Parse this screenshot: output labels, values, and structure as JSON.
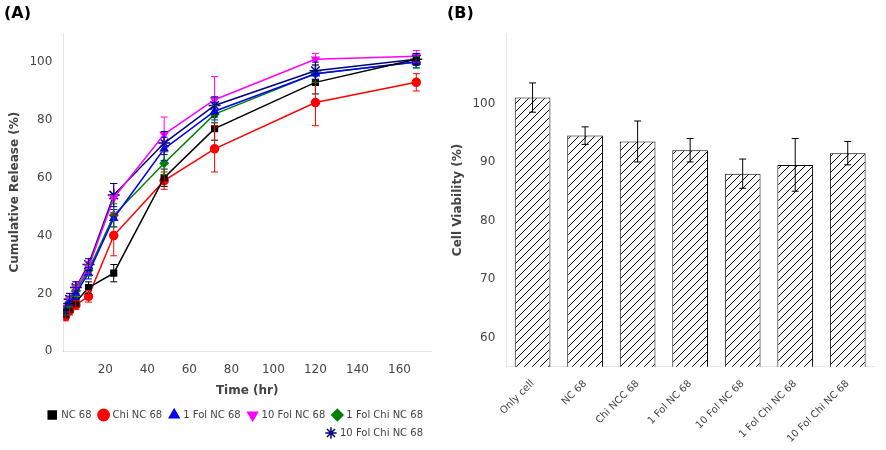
{
  "chart_data": [
    {
      "type": "line",
      "title": "(A)",
      "xlabel": "Time (hr)",
      "ylabel": "Cumulative Release (%)",
      "x": [
        1,
        3,
        6,
        12,
        24,
        48,
        72,
        120,
        168
      ],
      "xlim": [
        0,
        175
      ],
      "ylim": [
        0,
        110
      ],
      "xticks": [
        20,
        40,
        60,
        80,
        100,
        120,
        140,
        160
      ],
      "yticks": [
        0,
        20,
        40,
        60,
        80,
        100
      ],
      "grid": false,
      "legend": "lower right",
      "series": [
        {
          "name": "NC 68",
          "color": "#000000",
          "marker": "square",
          "values": [
            13,
            15,
            17,
            22,
            27,
            60,
            77,
            93,
            101
          ],
          "errors": [
            1.5,
            1.5,
            1.5,
            2,
            3,
            3,
            4,
            4,
            2
          ]
        },
        {
          "name": "Chi NC 68",
          "color": "#ff0000",
          "marker": "circle",
          "values": [
            12,
            14,
            16,
            19,
            40,
            59,
            70,
            86,
            93
          ],
          "errors": [
            1.5,
            1.5,
            1.5,
            2,
            7,
            3,
            8,
            8,
            3
          ]
        },
        {
          "name": "1 Fol NC 68",
          "color": "#0000ff",
          "marker": "triangle-up",
          "values": [
            14,
            17,
            20,
            27,
            46,
            70,
            83,
            96,
            100
          ],
          "errors": [
            1.5,
            2,
            2,
            2,
            3,
            4,
            3,
            3,
            2
          ]
        },
        {
          "name": "10 Fol NC 68",
          "color": "#ff00ff",
          "marker": "triangle-down",
          "values": [
            15,
            18,
            22,
            29,
            53,
            75,
            87,
            101,
            102
          ],
          "errors": [
            1.5,
            2,
            2,
            2,
            5,
            6,
            8,
            2,
            2
          ]
        },
        {
          "name": "1 Fol Chi NC 68",
          "color": "#008000",
          "marker": "diamond",
          "values": [
            14,
            17,
            21,
            28,
            47,
            65,
            82,
            96,
            100
          ],
          "errors": [
            1.5,
            2,
            2,
            2,
            4,
            4,
            3,
            3,
            2
          ]
        },
        {
          "name": "10 Fol Chi NC 68",
          "color": "#000080",
          "marker": "star",
          "values": [
            15,
            18,
            22,
            30,
            54,
            72,
            85,
            97,
            101
          ],
          "errors": [
            1.5,
            2,
            2,
            2,
            4,
            4,
            3,
            3,
            2
          ]
        }
      ]
    },
    {
      "type": "bar",
      "title": "(B)",
      "ylabel": "Cell Viability (%)",
      "categories": [
        "Only cell",
        "NC 68",
        "Chi NCC 68",
        "1 Fol NC 68",
        "10 Fol NC 68",
        "1 Fol Chi NC 68",
        "10 Fol Chi NC 68"
      ],
      "values": [
        101.0,
        94.5,
        93.5,
        92.0,
        88.0,
        89.5,
        91.5
      ],
      "errors": [
        2.5,
        1.5,
        3.5,
        2.0,
        2.5,
        4.5,
        2.0
      ],
      "color": "#ffffff",
      "ylim": [
        55,
        112
      ],
      "yticks": [
        60,
        70,
        80,
        90,
        100
      ],
      "grid": false
    }
  ]
}
